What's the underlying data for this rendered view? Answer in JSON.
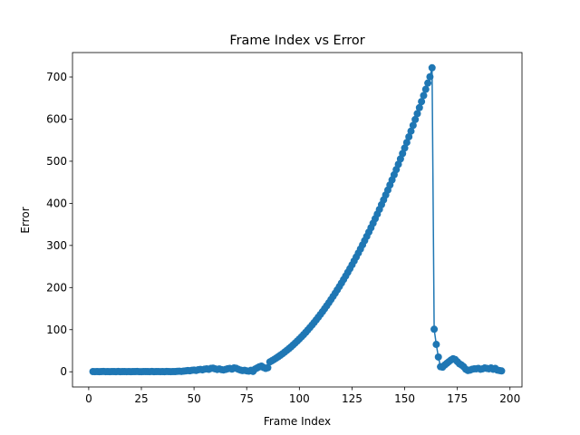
{
  "chart_data": {
    "type": "line",
    "title": "Frame Index vs Error",
    "xlabel": "Frame Index",
    "ylabel": "Error",
    "color": "#1f77b4",
    "x": [
      2,
      3,
      4,
      5,
      6,
      7,
      8,
      9,
      10,
      11,
      12,
      13,
      14,
      15,
      16,
      17,
      18,
      19,
      20,
      21,
      22,
      23,
      24,
      25,
      26,
      27,
      28,
      29,
      30,
      31,
      32,
      33,
      34,
      35,
      36,
      37,
      38,
      39,
      40,
      41,
      42,
      43,
      44,
      45,
      46,
      47,
      48,
      49,
      50,
      51,
      52,
      53,
      54,
      55,
      56,
      57,
      58,
      59,
      60,
      61,
      62,
      63,
      64,
      65,
      66,
      67,
      68,
      69,
      70,
      71,
      72,
      73,
      74,
      75,
      76,
      77,
      78,
      79,
      80,
      81,
      82,
      83,
      84,
      85,
      86,
      87,
      88,
      89,
      90,
      91,
      92,
      93,
      94,
      95,
      96,
      97,
      98,
      99,
      100,
      101,
      102,
      103,
      104,
      105,
      106,
      107,
      108,
      109,
      110,
      111,
      112,
      113,
      114,
      115,
      116,
      117,
      118,
      119,
      120,
      121,
      122,
      123,
      124,
      125,
      126,
      127,
      128,
      129,
      130,
      131,
      132,
      133,
      134,
      135,
      136,
      137,
      138,
      139,
      140,
      141,
      142,
      143,
      144,
      145,
      146,
      147,
      148,
      149,
      150,
      151,
      152,
      153,
      154,
      155,
      156,
      157,
      158,
      159,
      160,
      161,
      162,
      163,
      164,
      165,
      166,
      167,
      168,
      169,
      170,
      171,
      172,
      173,
      174,
      175,
      176,
      177,
      178,
      179,
      180,
      181,
      182,
      183,
      184,
      185,
      186,
      187,
      188,
      189,
      190,
      191,
      192,
      193,
      194,
      195,
      196
    ],
    "values": [
      0.5,
      0.3,
      0.6,
      0.2,
      0.4,
      0.8,
      0.3,
      0.5,
      0.2,
      0.6,
      0.4,
      0.3,
      0.7,
      0.2,
      0.5,
      0.4,
      0.3,
      0.6,
      0.2,
      0.5,
      0.4,
      0.7,
      0.3,
      0.2,
      0.6,
      0.4,
      0.5,
      0.3,
      0.8,
      0.2,
      0.4,
      0.6,
      0.3,
      0.5,
      0.2,
      0.7,
      0.4,
      0.3,
      0.6,
      0.5,
      0.9,
      1.2,
      0.8,
      1.5,
      2.1,
      3.0,
      2.4,
      3.5,
      4.1,
      3.2,
      4.8,
      5.5,
      4.6,
      6.2,
      7.0,
      5.8,
      7.9,
      8.5,
      6.9,
      5.4,
      6.8,
      5.1,
      4.3,
      5.6,
      7.2,
      8.1,
      6.4,
      9.0,
      8.2,
      6.0,
      4.1,
      2.8,
      3.5,
      2.2,
      1.5,
      3.4,
      0.8,
      6.5,
      9.2,
      11.8,
      13.5,
      10.2,
      8.0,
      9.6,
      23.4,
      26.2,
      29.2,
      32.4,
      35.7,
      39.2,
      42.8,
      46.7,
      50.6,
      54.8,
      59,
      63.5,
      68.1,
      72.9,
      77.8,
      82.9,
      88.2,
      93.6,
      99.2,
      105,
      110.9,
      117,
      123.2,
      129.6,
      136.2,
      142.9,
      149.8,
      156.8,
      164,
      171.4,
      178.9,
      186.6,
      194.5,
      202.5,
      210.7,
      219,
      227.5,
      236.2,
      245,
      254,
      263.2,
      272.5,
      282,
      291.6,
      301.4,
      311.4,
      321.5,
      331.8,
      342.2,
      352.8,
      363.6,
      374.5,
      385.6,
      396.9,
      408.3,
      419.9,
      431.6,
      443.6,
      455.6,
      467.9,
      480.2,
      492.8,
      505.5,
      518.4,
      531.4,
      544.6,
      558,
      571.5,
      585.2,
      599.1,
      613.1,
      627.3,
      641.6,
      656.1,
      670.8,
      685.6,
      700.6,
      722,
      101,
      65,
      35,
      12,
      11,
      16,
      20,
      24,
      28,
      31,
      29,
      24,
      19,
      16,
      12,
      6,
      3,
      4,
      6,
      7,
      7,
      8,
      6,
      7,
      9,
      8,
      7,
      9,
      6,
      8,
      4,
      3,
      2
    ],
    "xlim": [
      -7.7,
      205.7
    ],
    "ylim": [
      -36.1,
      758.1
    ],
    "xticks": [
      0,
      25,
      50,
      75,
      100,
      125,
      150,
      175,
      200
    ],
    "yticks": [
      0,
      100,
      200,
      300,
      400,
      500,
      600,
      700
    ]
  }
}
